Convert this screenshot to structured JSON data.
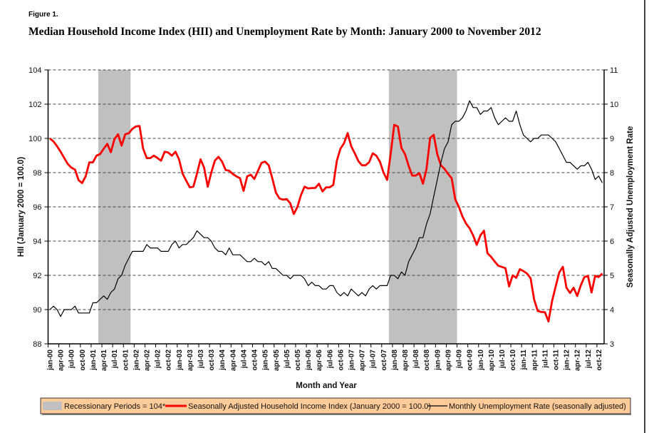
{
  "figure_label": "Figure 1.",
  "chart_data": {
    "type": "line",
    "title": "Median Household Income Index (HII) and Unemployment Rate by Month: January 2000 to November 2012",
    "xlabel": "Month and Year",
    "ylabel_left": "HII (January 2000 = 100.0)",
    "ylabel_right": "Seasonally Adjusted Unemployment Rate",
    "x_range": [
      "jan-00",
      "nov-12"
    ],
    "ylim_left": [
      88,
      104
    ],
    "ylim_right": [
      3,
      11
    ],
    "yticks_left": [
      88,
      90,
      92,
      94,
      96,
      98,
      100,
      102,
      104
    ],
    "yticks_right": [
      3,
      4,
      5,
      6,
      7,
      8,
      9,
      10,
      11
    ],
    "grid": "horizontal dashed",
    "legend_position": "bottom",
    "x_tick_labels": [
      "jan-00",
      "apr-00",
      "jul-00",
      "oct-00",
      "jan-01",
      "apr-01",
      "jul-01",
      "oct-01",
      "jan-02",
      "apr-02",
      "jul-02",
      "oct-02",
      "jan-03",
      "apr-03",
      "jul-03",
      "oct-03",
      "jan-04",
      "apr-04",
      "jul-04",
      "oct-04",
      "jan-05",
      "apr-05",
      "jul-05",
      "oct-05",
      "jan-06",
      "apr-06",
      "jul-06",
      "oct-06",
      "jan-07",
      "apr-07",
      "jul-07",
      "oct-07",
      "jan-08",
      "apr-08",
      "jul-08",
      "oct-08",
      "jan-09",
      "apr-09",
      "jul-09",
      "oct-09",
      "jan-10",
      "apr-10",
      "jul-10",
      "oct-10",
      "jan-11",
      "apr-11",
      "jul-11",
      "oct-11",
      "jan-12",
      "apr-12",
      "jul-12",
      "oct-12"
    ],
    "recessions": [
      {
        "start": "mar-01",
        "end": "nov-01",
        "value": 104
      },
      {
        "start": "dec-07",
        "end": "jun-09",
        "value": 104
      }
    ],
    "series": [
      {
        "name": "Seasonally Adjusted Household Income Index (January 2000 = 100.0)",
        "axis": "left",
        "color": "#FF0000",
        "values": [
          100.0,
          99.82,
          99.54,
          99.22,
          98.85,
          98.5,
          98.29,
          98.18,
          97.56,
          97.39,
          97.8,
          98.6,
          98.6,
          98.99,
          99.08,
          99.4,
          99.68,
          99.19,
          99.96,
          100.24,
          99.58,
          100.24,
          100.3,
          100.56,
          100.7,
          100.72,
          99.4,
          98.85,
          98.85,
          98.99,
          98.85,
          98.7,
          99.22,
          99.17,
          98.99,
          99.22,
          98.78,
          97.94,
          97.53,
          97.14,
          97.18,
          97.94,
          98.78,
          98.29,
          97.18,
          98.01,
          98.7,
          98.92,
          98.64,
          98.15,
          98.11,
          97.92,
          97.78,
          97.67,
          96.93,
          97.78,
          97.88,
          97.63,
          98.11,
          98.57,
          98.64,
          98.43,
          97.67,
          96.83,
          96.49,
          96.42,
          96.46,
          96.21,
          95.58,
          96.0,
          96.69,
          97.18,
          97.08,
          97.1,
          97.11,
          97.35,
          96.9,
          97.14,
          97.14,
          97.28,
          98.71,
          99.4,
          99.72,
          100.31,
          99.54,
          99.13,
          98.67,
          98.43,
          98.43,
          98.61,
          99.13,
          98.99,
          98.64,
          98.01,
          97.57,
          99.1,
          100.79,
          100.69,
          99.44,
          99.08,
          98.39,
          97.83,
          97.83,
          97.97,
          97.35,
          98.22,
          100.03,
          100.21,
          99.06,
          98.43,
          98.22,
          97.92,
          97.67,
          96.44,
          96.0,
          95.44,
          95.03,
          94.75,
          94.33,
          93.78,
          94.33,
          94.61,
          93.29,
          93.08,
          92.81,
          92.56,
          92.49,
          92.42,
          91.35,
          92.0,
          91.86,
          92.36,
          92.25,
          92.11,
          91.83,
          90.58,
          89.92,
          89.86,
          89.85,
          89.31,
          90.51,
          91.35,
          92.18,
          92.5,
          91.28,
          90.97,
          91.28,
          90.79,
          91.42,
          91.9,
          91.97,
          91.0,
          91.97,
          91.9,
          92.11
        ]
      },
      {
        "name": "Monthly Unemployment Rate (seasonally adjusted)",
        "axis": "right",
        "color": "#000000",
        "values": [
          4.0,
          4.1,
          4.0,
          3.8,
          4.0,
          4.0,
          4.0,
          4.1,
          3.9,
          3.9,
          3.9,
          3.9,
          4.2,
          4.2,
          4.3,
          4.4,
          4.3,
          4.5,
          4.6,
          4.9,
          5.0,
          5.3,
          5.5,
          5.7,
          5.7,
          5.7,
          5.7,
          5.9,
          5.8,
          5.8,
          5.8,
          5.7,
          5.7,
          5.7,
          5.9,
          6.0,
          5.8,
          5.9,
          5.9,
          6.0,
          6.1,
          6.3,
          6.2,
          6.1,
          6.1,
          6.0,
          5.8,
          5.7,
          5.7,
          5.6,
          5.8,
          5.6,
          5.6,
          5.6,
          5.5,
          5.4,
          5.4,
          5.5,
          5.4,
          5.4,
          5.3,
          5.4,
          5.2,
          5.2,
          5.1,
          5.0,
          5.0,
          4.9,
          5.0,
          5.0,
          5.0,
          4.9,
          4.7,
          4.8,
          4.7,
          4.7,
          4.6,
          4.6,
          4.7,
          4.7,
          4.5,
          4.4,
          4.5,
          4.4,
          4.6,
          4.5,
          4.4,
          4.5,
          4.4,
          4.6,
          4.7,
          4.6,
          4.7,
          4.7,
          4.7,
          5.0,
          5.0,
          4.9,
          5.1,
          5.0,
          5.4,
          5.6,
          5.8,
          6.1,
          6.1,
          6.5,
          6.8,
          7.3,
          7.8,
          8.3,
          8.7,
          8.9,
          9.4,
          9.5,
          9.5,
          9.6,
          9.8,
          10.1,
          9.9,
          9.9,
          9.7,
          9.8,
          9.8,
          9.9,
          9.6,
          9.4,
          9.5,
          9.6,
          9.5,
          9.5,
          9.8,
          9.4,
          9.1,
          9.0,
          8.9,
          9.0,
          9.0,
          9.1,
          9.1,
          9.1,
          9.0,
          8.9,
          8.7,
          8.5,
          8.3,
          8.3,
          8.2,
          8.1,
          8.2,
          8.2,
          8.3,
          8.1,
          7.8,
          7.9,
          7.7
        ]
      }
    ],
    "legend": [
      {
        "label": "Recessionary Periods = 104*",
        "kind": "area",
        "color": "#C0C0C0"
      },
      {
        "label": "Seasonally Adjusted Household Income Index (January 2000 = 100.0)",
        "kind": "line",
        "color": "#FF0000"
      },
      {
        "label": "Monthly Unemployment Rate (seasonally adjusted)",
        "kind": "line",
        "color": "#000000"
      }
    ],
    "legend_background": "#FFCC99"
  }
}
